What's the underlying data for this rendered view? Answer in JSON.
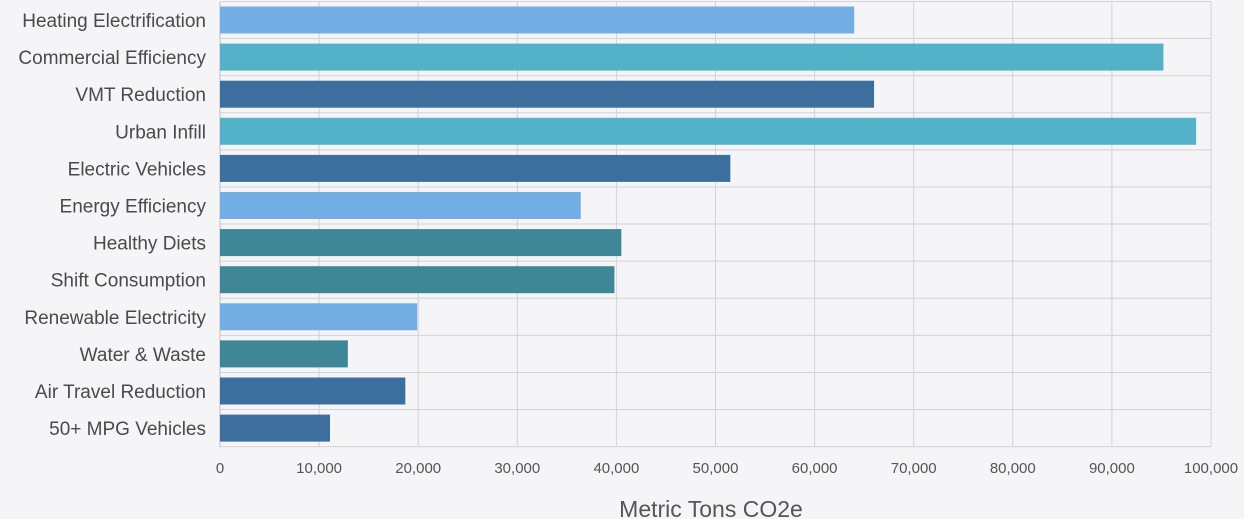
{
  "chart_data": {
    "type": "bar",
    "orientation": "horizontal",
    "categories": [
      "Heating Electrification",
      "Commercial Efficiency",
      "VMT Reduction",
      "Urban Infill",
      "Electric Vehicles",
      "Energy Efficiency",
      "Healthy Diets",
      "Shift Consumption",
      "Renewable Electricity",
      "Water & Waste",
      "Air Travel Reduction",
      "50+ MPG Vehicles"
    ],
    "values": [
      64000,
      95200,
      66000,
      98500,
      51500,
      36400,
      40500,
      39800,
      19900,
      12900,
      18700,
      11100
    ],
    "colors": [
      "#72ade4",
      "#54b2c8",
      "#3d6f9e",
      "#54b2c8",
      "#3d6f9e",
      "#72ade4",
      "#3f8797",
      "#3f8797",
      "#72ade4",
      "#3f8797",
      "#3d6f9e",
      "#3d6f9e"
    ],
    "xlabel": "Metric Tons CO2e",
    "xlim": [
      0,
      100000
    ],
    "xticks": [
      "0",
      "10,000",
      "20,000",
      "30,000",
      "40,000",
      "50,000",
      "60,000",
      "70,000",
      "80,000",
      "90,000",
      "100,000"
    ],
    "grid": true
  }
}
